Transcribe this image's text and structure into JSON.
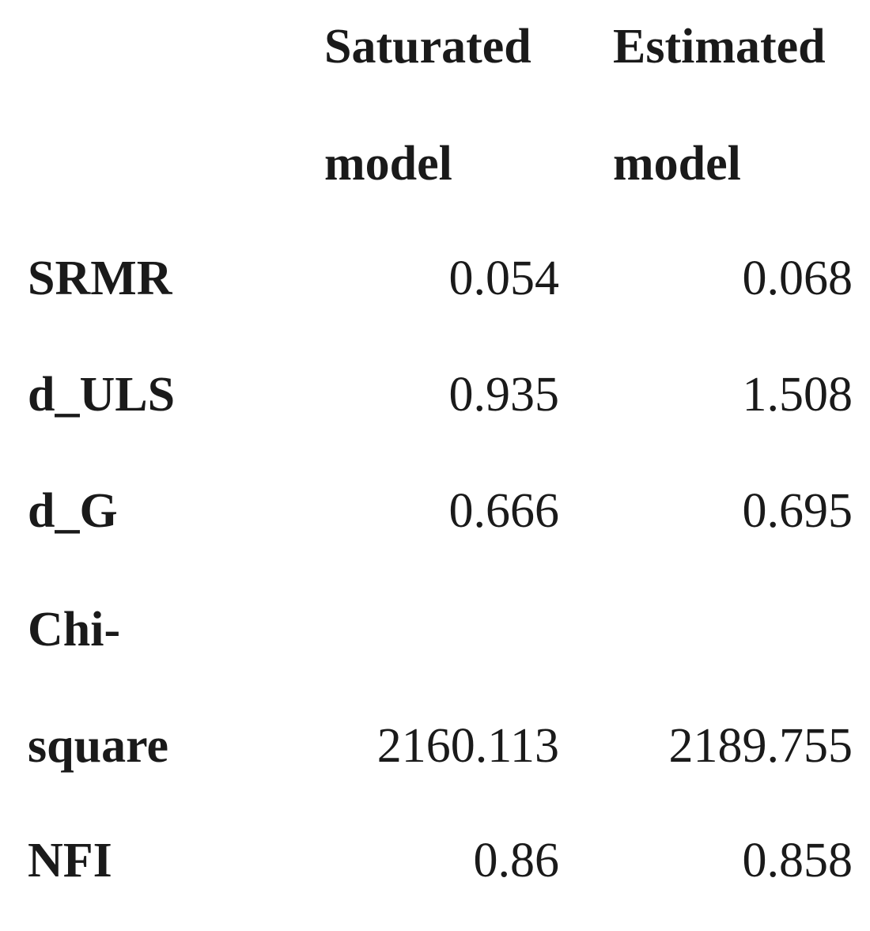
{
  "header": {
    "col1_line1": "Saturated",
    "col1_line2": "model",
    "col2_line1": "Estimated",
    "col2_line2": "model"
  },
  "rows": [
    {
      "label": "SRMR",
      "saturated": "0.054",
      "estimated": "0.068"
    },
    {
      "label": "d_ULS",
      "saturated": "0.935",
      "estimated": "1.508"
    },
    {
      "label": "d_G",
      "saturated": "0.666",
      "estimated": "0.695"
    },
    {
      "label_line1": "Chi-",
      "label_line2": "square",
      "saturated": "2160.113",
      "estimated": "2189.755"
    },
    {
      "label": "NFI",
      "saturated": "0.86",
      "estimated": "0.858"
    }
  ]
}
